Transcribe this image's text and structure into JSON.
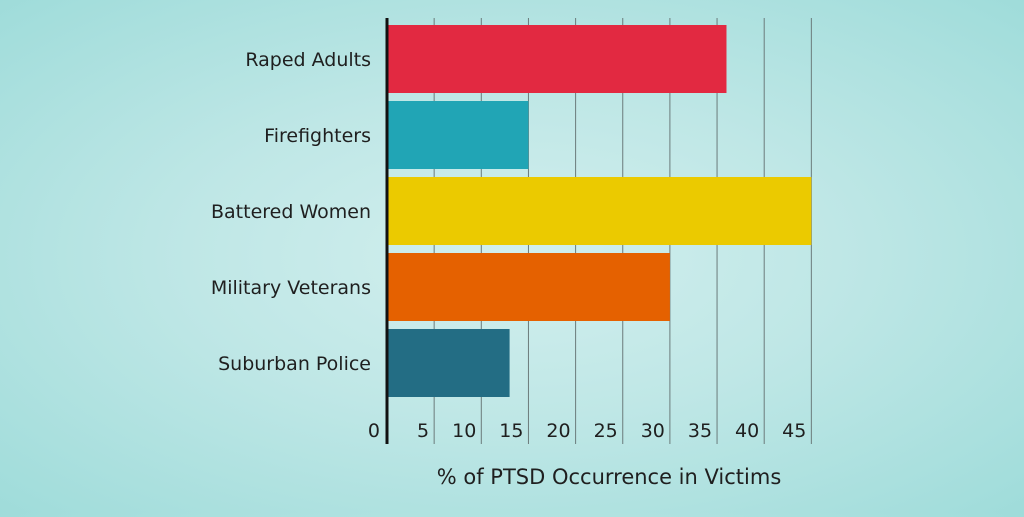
{
  "chart_data": {
    "type": "bar",
    "orientation": "horizontal",
    "categories": [
      "Raped Adults",
      "Firefighters",
      "Battered Women",
      "Military Veterans",
      "Suburban Police"
    ],
    "values": [
      36,
      15,
      45,
      30,
      13
    ],
    "colors": [
      "#e22941",
      "#21a5b5",
      "#ebca00",
      "#e56100",
      "#236d84"
    ],
    "xlabel": "% of PTSD Occurrence in Victims",
    "ylabel": "",
    "xlim": [
      0,
      45
    ],
    "xticks": [
      0,
      5,
      10,
      15,
      20,
      25,
      30,
      35,
      40,
      45
    ],
    "grid": "vertical lines",
    "legend": "none"
  }
}
